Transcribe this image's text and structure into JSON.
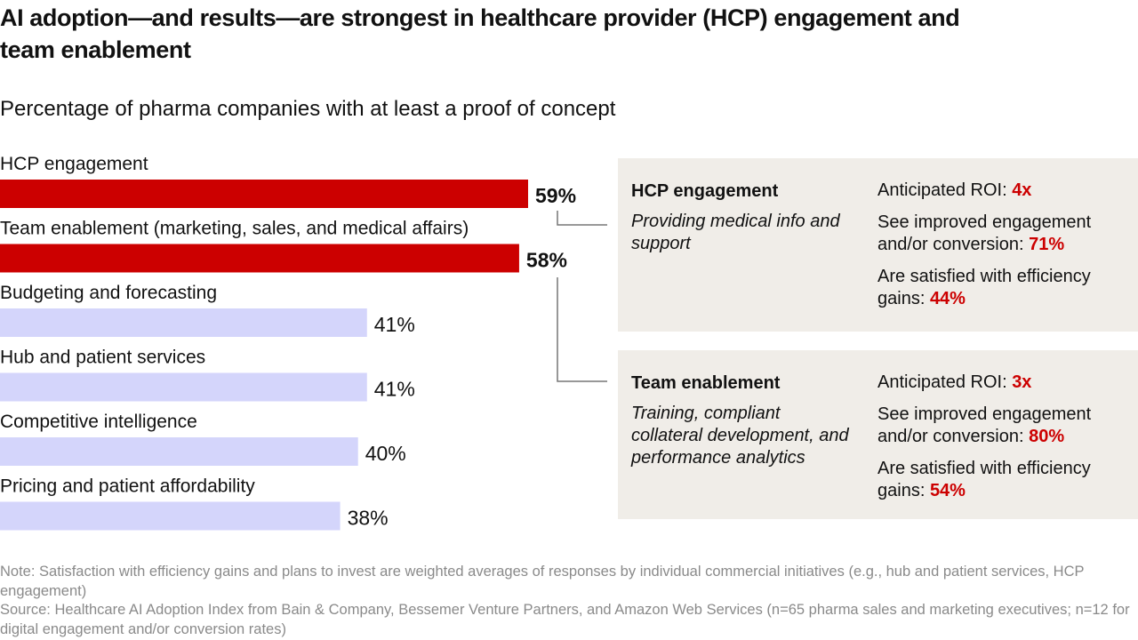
{
  "title": "AI adoption—and results—are strongest in healthcare provider (HCP) engagement and team enablement",
  "subtitle": "Percentage of pharma companies with at least a proof of concept",
  "chart_data": {
    "type": "bar",
    "orientation": "horizontal",
    "title": "AI adoption—and results—are strongest in healthcare provider (HCP) engagement and team enablement",
    "subtitle": "Percentage of pharma companies with at least a proof of concept",
    "xlabel": "",
    "ylabel": "",
    "xlim": [
      0,
      100
    ],
    "unit": "%",
    "grid": false,
    "categories": [
      "HCP engagement",
      "Team enablement (marketing, sales, and medical affairs)",
      "Budgeting and forecasting",
      "Hub and patient services",
      "Competitive intelligence",
      "Pricing and patient affordability"
    ],
    "values": [
      59,
      58,
      41,
      41,
      40,
      38
    ],
    "value_labels": [
      "59%",
      "58%",
      "41%",
      "41%",
      "40%",
      "38%"
    ],
    "highlighted": [
      true,
      true,
      false,
      false,
      false,
      false
    ],
    "colors": {
      "highlight": "#cc0000",
      "default": "#d4d5fb"
    }
  },
  "panels": [
    {
      "heading": "HCP engagement",
      "description": "Providing medical info and support",
      "stats": [
        {
          "text": "Anticipated ROI: ",
          "value": "4x"
        },
        {
          "text": "See improved engagement and/or conversion: ",
          "value": "71%"
        },
        {
          "text": "Are satisfied with efficiency gains: ",
          "value": "44%"
        }
      ]
    },
    {
      "heading": "Team enablement",
      "description": "Training, compliant collateral development, and performance analytics",
      "stats": [
        {
          "text": "Anticipated ROI: ",
          "value": "3x"
        },
        {
          "text": "See improved engagement and/or conversion: ",
          "value": "80%"
        },
        {
          "text": "Are satisfied with efficiency gains: ",
          "value": "54%"
        }
      ]
    }
  ],
  "footnote": {
    "note": "Note: Satisfaction with efficiency gains and plans to invest are weighted averages of responses by individual commercial initiatives (e.g., hub and patient services, HCP engagement)",
    "source": "Source: Healthcare AI Adoption Index from Bain & Company, Bessemer Venture Partners, and Amazon Web Services (n=65 pharma sales and marketing executives; n=12 for digital engagement and/or conversion rates)"
  }
}
